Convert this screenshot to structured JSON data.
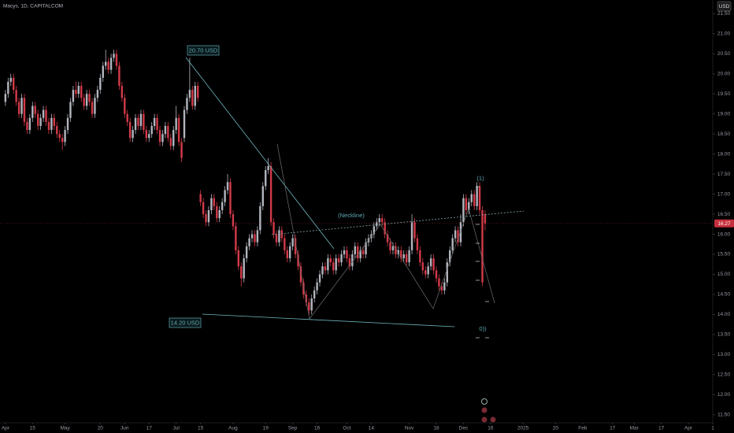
{
  "chart_data": {
    "type": "candlestick",
    "title": "Macys, 1D, CAPITALCOM",
    "currency": "USD",
    "up_color": "#b2b5be",
    "down_color": "#d23a48",
    "grid": false,
    "last_price": 16.27,
    "last_price_color": "#c62f3d",
    "annotations": [
      "20.70 USD",
      "14.20 USD",
      "(Neckline)",
      "(1)",
      "0))"
    ],
    "xlim": [
      -2,
      261
    ],
    "xticks": [
      {
        "value": 0,
        "label": "Apr"
      },
      {
        "value": 10,
        "label": "15"
      },
      {
        "value": 22,
        "label": "May"
      },
      {
        "value": 35,
        "label": "20"
      },
      {
        "value": 44,
        "label": "Jun"
      },
      {
        "value": 53,
        "label": "17"
      },
      {
        "value": 63,
        "label": "Jul"
      },
      {
        "value": 72,
        "label": "15"
      },
      {
        "value": 84,
        "label": "Aug"
      },
      {
        "value": 96,
        "label": "19"
      },
      {
        "value": 106,
        "label": "Sep"
      },
      {
        "value": 115,
        "label": "16"
      },
      {
        "value": 126,
        "label": "Oct"
      },
      {
        "value": 135,
        "label": "14"
      },
      {
        "value": 149,
        "label": "Nov"
      },
      {
        "value": 159,
        "label": "18"
      },
      {
        "value": 169,
        "label": "Dec"
      },
      {
        "value": 179,
        "label": "16"
      },
      {
        "value": 191,
        "label": "2025"
      },
      {
        "value": 203,
        "label": "20"
      },
      {
        "value": 213,
        "label": "Feb"
      },
      {
        "value": 224,
        "label": "17"
      },
      {
        "value": 232,
        "label": "Mar"
      },
      {
        "value": 242,
        "label": "17"
      },
      {
        "value": 252,
        "label": "Apr"
      },
      {
        "value": 261,
        "label": "1"
      }
    ],
    "ylim": [
      11.3,
      21.84
    ],
    "yticks": [
      {
        "value": 11.5,
        "label": "11.50"
      },
      {
        "value": 12,
        "label": "12.00"
      },
      {
        "value": 12.5,
        "label": "12.50"
      },
      {
        "value": 13,
        "label": "13.00"
      },
      {
        "value": 13.5,
        "label": "13.50"
      },
      {
        "value": 14,
        "label": "14.00"
      },
      {
        "value": 14.5,
        "label": "14.50"
      },
      {
        "value": 15,
        "label": "15.00"
      },
      {
        "value": 15.5,
        "label": "15.50"
      },
      {
        "value": 16,
        "label": "16.00"
      },
      {
        "value": 16.5,
        "label": "16.50"
      },
      {
        "value": 17,
        "label": "17.00"
      },
      {
        "value": 17.5,
        "label": "17.50"
      },
      {
        "value": 18,
        "label": "18.00"
      },
      {
        "value": 18.5,
        "label": "18.50"
      },
      {
        "value": 19,
        "label": "19.00"
      },
      {
        "value": 19.5,
        "label": "19.50"
      },
      {
        "value": 20,
        "label": "20.00"
      },
      {
        "value": 20.5,
        "label": "20.50"
      },
      {
        "value": 21,
        "label": "21.00"
      },
      {
        "value": 21.5,
        "label": "21.50"
      }
    ],
    "ohlc": [
      [
        19.3,
        19.6,
        19.2,
        19.5
      ],
      [
        19.5,
        19.9,
        19.4,
        19.8
      ],
      [
        19.8,
        20.0,
        19.7,
        19.9
      ],
      [
        19.9,
        20.0,
        19.5,
        19.6
      ],
      [
        19.6,
        19.7,
        19.2,
        19.3
      ],
      [
        19.3,
        19.4,
        18.9,
        19.0
      ],
      [
        19.0,
        19.5,
        18.9,
        19.4
      ],
      [
        19.4,
        19.5,
        18.7,
        18.8
      ],
      [
        18.8,
        18.9,
        18.5,
        18.6
      ],
      [
        18.6,
        19.0,
        18.5,
        18.9
      ],
      [
        18.9,
        19.3,
        18.8,
        19.2
      ],
      [
        19.2,
        19.3,
        18.9,
        19.0
      ],
      [
        19.0,
        19.1,
        18.6,
        18.7
      ],
      [
        18.7,
        19.0,
        18.6,
        18.9
      ],
      [
        18.9,
        19.2,
        18.8,
        19.1
      ],
      [
        19.1,
        19.2,
        18.7,
        18.8
      ],
      [
        18.8,
        18.9,
        18.5,
        18.6
      ],
      [
        18.6,
        19.0,
        18.5,
        18.9
      ],
      [
        18.9,
        19.0,
        18.6,
        18.7
      ],
      [
        18.7,
        18.8,
        18.4,
        18.5
      ],
      [
        18.5,
        18.6,
        18.3,
        18.4
      ],
      [
        18.4,
        18.5,
        18.1,
        18.3
      ],
      [
        18.3,
        18.7,
        18.2,
        18.6
      ],
      [
        18.6,
        19.0,
        18.5,
        18.9
      ],
      [
        18.9,
        19.4,
        18.8,
        19.3
      ],
      [
        19.3,
        19.7,
        19.2,
        19.6
      ],
      [
        19.6,
        19.8,
        19.4,
        19.5
      ],
      [
        19.5,
        19.8,
        19.4,
        19.7
      ],
      [
        19.7,
        19.8,
        19.3,
        19.4
      ],
      [
        19.4,
        19.5,
        19.1,
        19.2
      ],
      [
        19.2,
        19.6,
        19.1,
        19.5
      ],
      [
        19.5,
        19.6,
        19.2,
        19.3
      ],
      [
        19.3,
        19.4,
        18.9,
        19.0
      ],
      [
        19.0,
        19.5,
        18.9,
        19.4
      ],
      [
        19.4,
        19.7,
        19.3,
        19.6
      ],
      [
        19.6,
        20.0,
        19.5,
        19.9
      ],
      [
        19.9,
        20.3,
        19.8,
        20.2
      ],
      [
        20.2,
        20.6,
        20.1,
        20.3
      ],
      [
        20.3,
        20.4,
        20.0,
        20.1
      ],
      [
        20.1,
        20.5,
        20.0,
        20.4
      ],
      [
        20.4,
        20.6,
        20.3,
        20.5
      ],
      [
        20.5,
        20.6,
        20.1,
        20.2
      ],
      [
        20.2,
        20.3,
        19.6,
        19.7
      ],
      [
        19.7,
        19.8,
        19.3,
        19.4
      ],
      [
        19.4,
        19.5,
        18.9,
        19.0
      ],
      [
        19.0,
        19.1,
        18.7,
        18.8
      ],
      [
        18.8,
        18.9,
        18.3,
        18.4
      ],
      [
        18.4,
        18.7,
        18.3,
        18.6
      ],
      [
        18.6,
        19.0,
        18.5,
        18.9
      ],
      [
        18.9,
        19.0,
        18.6,
        18.7
      ],
      [
        18.7,
        19.1,
        18.6,
        19.0
      ],
      [
        19.0,
        19.1,
        18.5,
        18.6
      ],
      [
        18.6,
        18.7,
        18.3,
        18.4
      ],
      [
        18.4,
        18.6,
        18.3,
        18.5
      ],
      [
        18.5,
        18.8,
        18.4,
        18.7
      ],
      [
        18.7,
        19.0,
        18.6,
        18.9
      ],
      [
        18.9,
        19.0,
        18.5,
        18.6
      ],
      [
        18.6,
        18.7,
        18.2,
        18.3
      ],
      [
        18.3,
        18.6,
        18.2,
        18.5
      ],
      [
        18.5,
        18.8,
        18.4,
        18.7
      ],
      [
        18.7,
        18.8,
        18.3,
        18.4
      ],
      [
        18.4,
        18.5,
        18.1,
        18.2
      ],
      [
        18.2,
        18.7,
        18.1,
        18.6
      ],
      [
        18.6,
        19.2,
        18.5,
        18.9
      ],
      [
        18.9,
        19.0,
        18.2,
        18.3
      ],
      [
        18.3,
        18.4,
        17.8,
        17.9
      ],
      [
        18.4,
        19.2,
        18.3,
        19.1
      ],
      [
        19.1,
        19.5,
        19.0,
        19.4
      ],
      [
        19.4,
        20.4,
        19.3,
        19.6
      ],
      [
        19.6,
        19.7,
        19.1,
        19.2
      ],
      [
        19.2,
        19.8,
        19.1,
        19.7
      ],
      [
        19.7,
        19.8,
        19.3,
        19.4
      ],
      [
        17.0,
        17.1,
        16.7,
        16.8
      ],
      [
        16.8,
        16.9,
        16.4,
        16.5
      ],
      [
        16.5,
        16.6,
        16.2,
        16.3
      ],
      [
        16.3,
        16.7,
        16.2,
        16.6
      ],
      [
        16.6,
        17.0,
        16.5,
        16.9
      ],
      [
        16.9,
        17.0,
        16.6,
        16.7
      ],
      [
        16.7,
        16.8,
        16.3,
        16.4
      ],
      [
        16.4,
        16.7,
        16.3,
        16.6
      ],
      [
        16.6,
        16.9,
        16.5,
        16.8
      ],
      [
        16.8,
        17.2,
        16.7,
        17.1
      ],
      [
        17.1,
        17.5,
        17.0,
        17.3
      ],
      [
        17.3,
        17.4,
        16.4,
        16.5
      ],
      [
        16.5,
        16.6,
        16.1,
        16.2
      ],
      [
        16.2,
        16.3,
        15.5,
        15.6
      ],
      [
        15.6,
        15.7,
        15.1,
        15.2
      ],
      [
        15.2,
        15.3,
        14.7,
        14.9
      ],
      [
        14.9,
        15.5,
        14.8,
        15.4
      ],
      [
        15.4,
        15.8,
        15.3,
        15.7
      ],
      [
        15.7,
        16.0,
        15.6,
        15.9
      ],
      [
        15.9,
        16.1,
        15.8,
        16.0
      ],
      [
        16.0,
        16.1,
        15.7,
        15.8
      ],
      [
        15.8,
        16.2,
        15.7,
        16.1
      ],
      [
        16.1,
        16.8,
        16.0,
        16.7
      ],
      [
        16.7,
        17.3,
        16.6,
        17.2
      ],
      [
        17.2,
        17.7,
        17.1,
        17.6
      ],
      [
        17.6,
        17.9,
        17.5,
        17.7
      ],
      [
        17.7,
        17.8,
        16.2,
        16.3
      ],
      [
        16.3,
        16.4,
        15.9,
        16.0
      ],
      [
        16.0,
        16.1,
        15.7,
        15.8
      ],
      [
        15.8,
        16.2,
        15.7,
        16.1
      ],
      [
        16.1,
        16.2,
        15.8,
        15.9
      ],
      [
        15.9,
        16.0,
        15.5,
        15.6
      ],
      [
        15.6,
        15.7,
        15.3,
        15.4
      ],
      [
        15.4,
        15.8,
        15.3,
        15.7
      ],
      [
        15.7,
        16.0,
        15.6,
        15.9
      ],
      [
        15.9,
        16.0,
        15.4,
        15.5
      ],
      [
        15.5,
        15.6,
        15.1,
        15.2
      ],
      [
        15.2,
        15.3,
        14.7,
        14.8
      ],
      [
        14.8,
        14.9,
        14.4,
        14.5
      ],
      [
        14.5,
        14.6,
        14.2,
        14.3
      ],
      [
        14.3,
        14.4,
        14.0,
        14.1
      ],
      [
        14.1,
        14.5,
        14.0,
        14.4
      ],
      [
        14.4,
        14.7,
        14.3,
        14.6
      ],
      [
        14.6,
        14.9,
        14.5,
        14.8
      ],
      [
        14.8,
        15.1,
        14.7,
        15.0
      ],
      [
        15.0,
        15.3,
        14.9,
        15.2
      ],
      [
        15.2,
        15.3,
        15.0,
        15.1
      ],
      [
        15.1,
        15.5,
        15.0,
        15.4
      ],
      [
        15.4,
        15.5,
        15.2,
        15.3
      ],
      [
        15.3,
        15.4,
        15.0,
        15.1
      ],
      [
        15.1,
        15.5,
        15.0,
        15.4
      ],
      [
        15.4,
        15.5,
        15.2,
        15.3
      ],
      [
        15.3,
        15.6,
        15.2,
        15.5
      ],
      [
        15.5,
        15.7,
        15.4,
        15.6
      ],
      [
        15.6,
        15.7,
        15.3,
        15.4
      ],
      [
        15.4,
        15.5,
        15.1,
        15.2
      ],
      [
        15.2,
        15.6,
        15.1,
        15.5
      ],
      [
        15.5,
        15.8,
        15.4,
        15.7
      ],
      [
        15.7,
        15.8,
        15.3,
        15.4
      ],
      [
        15.4,
        15.7,
        15.3,
        15.6
      ],
      [
        15.6,
        15.7,
        15.4,
        15.5
      ],
      [
        15.5,
        15.9,
        15.4,
        15.8
      ],
      [
        15.8,
        16.0,
        15.7,
        15.9
      ],
      [
        15.9,
        16.1,
        15.8,
        16.0
      ],
      [
        16.0,
        16.3,
        15.9,
        16.2
      ],
      [
        16.2,
        16.4,
        16.1,
        16.3
      ],
      [
        16.3,
        16.5,
        16.2,
        16.4
      ],
      [
        16.4,
        16.5,
        16.2,
        16.3
      ],
      [
        16.3,
        16.4,
        15.9,
        16.0
      ],
      [
        16.0,
        16.1,
        15.7,
        15.8
      ],
      [
        15.8,
        15.9,
        15.5,
        15.6
      ],
      [
        15.6,
        15.8,
        15.5,
        15.7
      ],
      [
        15.7,
        15.8,
        15.4,
        15.5
      ],
      [
        15.5,
        15.7,
        15.4,
        15.6
      ],
      [
        15.6,
        15.7,
        15.3,
        15.4
      ],
      [
        15.4,
        15.6,
        15.3,
        15.5
      ],
      [
        15.5,
        15.6,
        15.2,
        15.3
      ],
      [
        15.3,
        15.7,
        15.2,
        15.6
      ],
      [
        15.6,
        16.5,
        15.5,
        16.3
      ],
      [
        16.3,
        16.4,
        15.8,
        15.9
      ],
      [
        15.9,
        16.0,
        15.5,
        15.6
      ],
      [
        15.6,
        15.7,
        15.2,
        15.3
      ],
      [
        15.3,
        15.4,
        15.0,
        15.1
      ],
      [
        15.1,
        15.2,
        14.9,
        15.0
      ],
      [
        15.0,
        15.3,
        14.9,
        15.2
      ],
      [
        15.2,
        15.5,
        15.1,
        15.4
      ],
      [
        15.4,
        15.5,
        15.0,
        15.1
      ],
      [
        15.1,
        15.2,
        14.8,
        14.9
      ],
      [
        14.9,
        15.0,
        14.6,
        14.7
      ],
      [
        14.7,
        14.8,
        14.5,
        14.6
      ],
      [
        14.6,
        14.9,
        14.5,
        14.8
      ],
      [
        14.8,
        15.4,
        14.7,
        15.3
      ],
      [
        15.3,
        15.7,
        15.2,
        15.6
      ],
      [
        15.6,
        16.0,
        15.5,
        15.9
      ],
      [
        15.9,
        16.2,
        15.8,
        16.1
      ],
      [
        16.1,
        16.2,
        15.7,
        15.8
      ],
      [
        15.8,
        16.5,
        15.7,
        16.3
      ],
      [
        16.3,
        17.0,
        16.2,
        16.9
      ],
      [
        16.9,
        17.0,
        16.5,
        16.6
      ],
      [
        16.6,
        16.9,
        16.5,
        16.8
      ],
      [
        16.8,
        17.1,
        16.7,
        17.0
      ],
      [
        17.0,
        17.1,
        16.6,
        16.7
      ],
      [
        16.7,
        17.3,
        16.6,
        17.2
      ],
      [
        17.2,
        17.3,
        16.5,
        16.6
      ],
      [
        16.6,
        16.7,
        14.7,
        14.8
      ],
      [
        16.5,
        16.6,
        16.1,
        16.27
      ]
    ]
  }
}
